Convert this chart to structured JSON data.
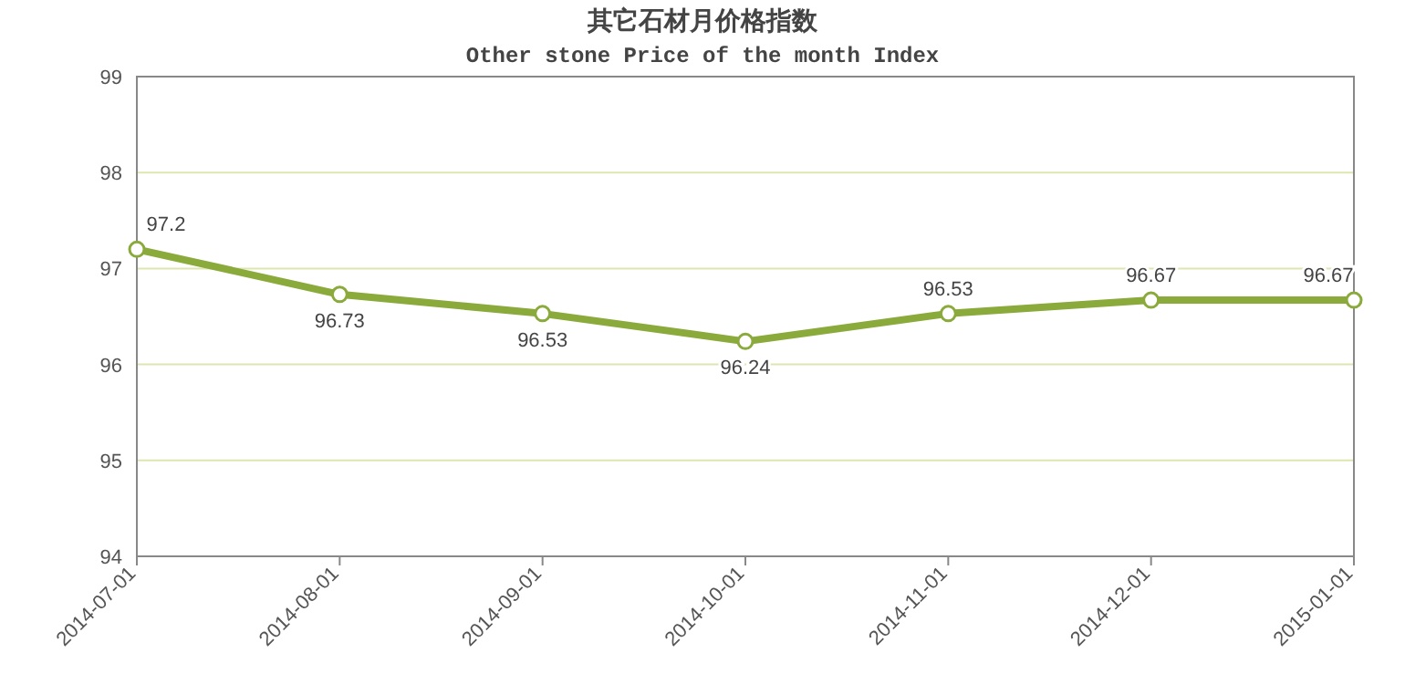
{
  "chart_data": {
    "type": "line",
    "title": "其它石材月价格指数",
    "subtitle": "Other stone Price of the month Index",
    "categories": [
      "2014-07-01",
      "2014-08-01",
      "2014-09-01",
      "2014-10-01",
      "2014-11-01",
      "2014-12-01",
      "2015-01-01"
    ],
    "series": [
      {
        "color": "#8aaa3c",
        "values": [
          97.2,
          96.73,
          96.53,
          96.24,
          96.53,
          96.67,
          96.67
        ]
      }
    ],
    "ylim": [
      94,
      99
    ],
    "yticks": [
      94,
      95,
      96,
      97,
      98,
      99
    ],
    "grid": "y",
    "marker": "circle",
    "data_labels": true
  }
}
